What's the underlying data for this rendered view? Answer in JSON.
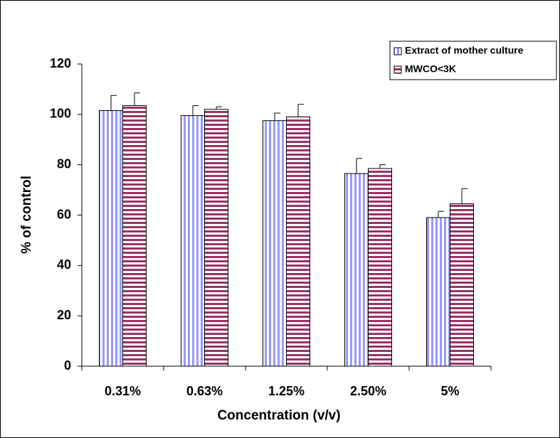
{
  "chart_data": {
    "type": "bar",
    "x_label": "Concentration (v/v)",
    "y_label": "% of control",
    "categories": [
      "0.31%",
      "0.63%",
      "1.25%",
      "2.50%",
      "5%"
    ],
    "series": [
      {
        "name": "Extract of mother culture",
        "color": "#9999ff",
        "pattern": "vertical",
        "values": [
          101.5,
          99.5,
          97.5,
          76.5,
          59
        ],
        "errors": [
          6,
          4,
          3,
          6,
          2.5
        ]
      },
      {
        "name": "MWCO<3K",
        "color": "#993366",
        "pattern": "horizontal",
        "values": [
          103.5,
          102,
          99,
          78.5,
          64.5
        ],
        "errors": [
          5,
          1,
          5,
          1.5,
          6
        ]
      }
    ],
    "ylim": [
      0,
      120
    ],
    "yticks": [
      0,
      20,
      40,
      60,
      80,
      100,
      120
    ],
    "grid": false,
    "legend": "top-right"
  }
}
